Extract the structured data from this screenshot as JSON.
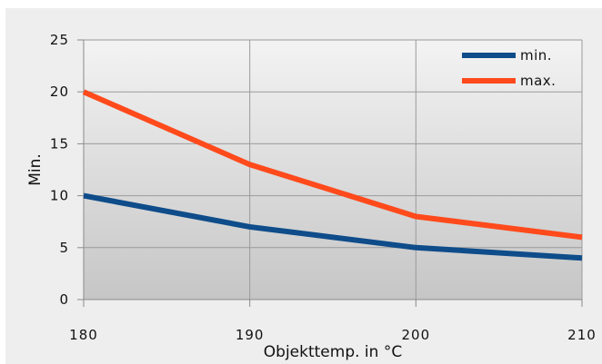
{
  "chart_data": {
    "type": "line",
    "title": "",
    "xlabel": "Objekttemp. in °C",
    "ylabel": "Min.",
    "x": [
      180,
      190,
      200,
      210
    ],
    "xlim": [
      180,
      210
    ],
    "ylim": [
      0,
      25
    ],
    "x_ticks": [
      "180",
      "190",
      "200",
      "210"
    ],
    "y_ticks": [
      "0",
      "5",
      "10",
      "15",
      "20",
      "25"
    ],
    "grid": true,
    "legend_position": "top-right",
    "series": [
      {
        "name": "min.",
        "values": [
          10,
          7,
          5,
          4
        ],
        "color": "#0e4c8a"
      },
      {
        "name": "max.",
        "values": [
          20,
          13,
          8,
          6
        ],
        "color": "#ff4a1c"
      }
    ]
  }
}
